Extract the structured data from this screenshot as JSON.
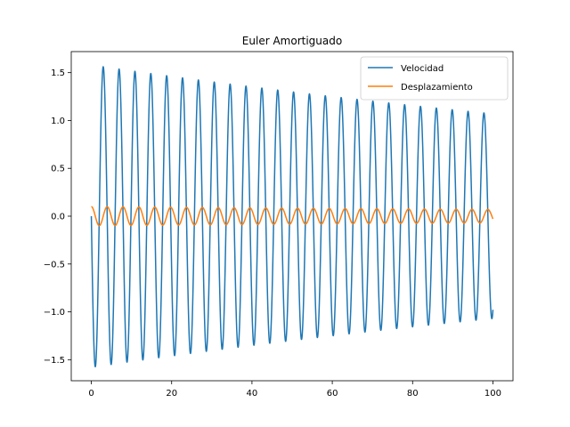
{
  "chart_data": {
    "type": "line",
    "title": "Euler Amortiguado",
    "xlabel": "",
    "ylabel": "",
    "xlim": [
      -5,
      105
    ],
    "ylim": [
      -1.72,
      1.72
    ],
    "x_ticks": [
      0,
      20,
      40,
      60,
      80,
      100
    ],
    "y_ticks": [
      -1.5,
      -1.0,
      -0.5,
      0.0,
      0.5,
      1.0,
      1.5
    ],
    "x_tick_labels": [
      "0",
      "20",
      "40",
      "60",
      "80",
      "100"
    ],
    "y_tick_labels": [
      "−1.5",
      "−1.0",
      "−0.5",
      "0.0",
      "0.5",
      "1.0",
      "1.5"
    ],
    "grid": false,
    "legend": "top-right",
    "x_range": [
      0,
      100
    ],
    "series": [
      {
        "name": "Velocidad",
        "color": "#1f77b4",
        "model": {
          "kind": "damped_sine",
          "amplitude_start": 1.58,
          "amplitude_end": 1.07,
          "period": 3.95,
          "phase": "negative-sine",
          "start": 0.0,
          "end": -0.94
        }
      },
      {
        "name": "Desplazamiento",
        "color": "#ff7f0e",
        "model": {
          "kind": "damped_cosine",
          "amplitude_start": 0.1,
          "amplitude_end": 0.07,
          "period": 3.95,
          "start": 0.1,
          "end": 0.06
        }
      }
    ]
  }
}
